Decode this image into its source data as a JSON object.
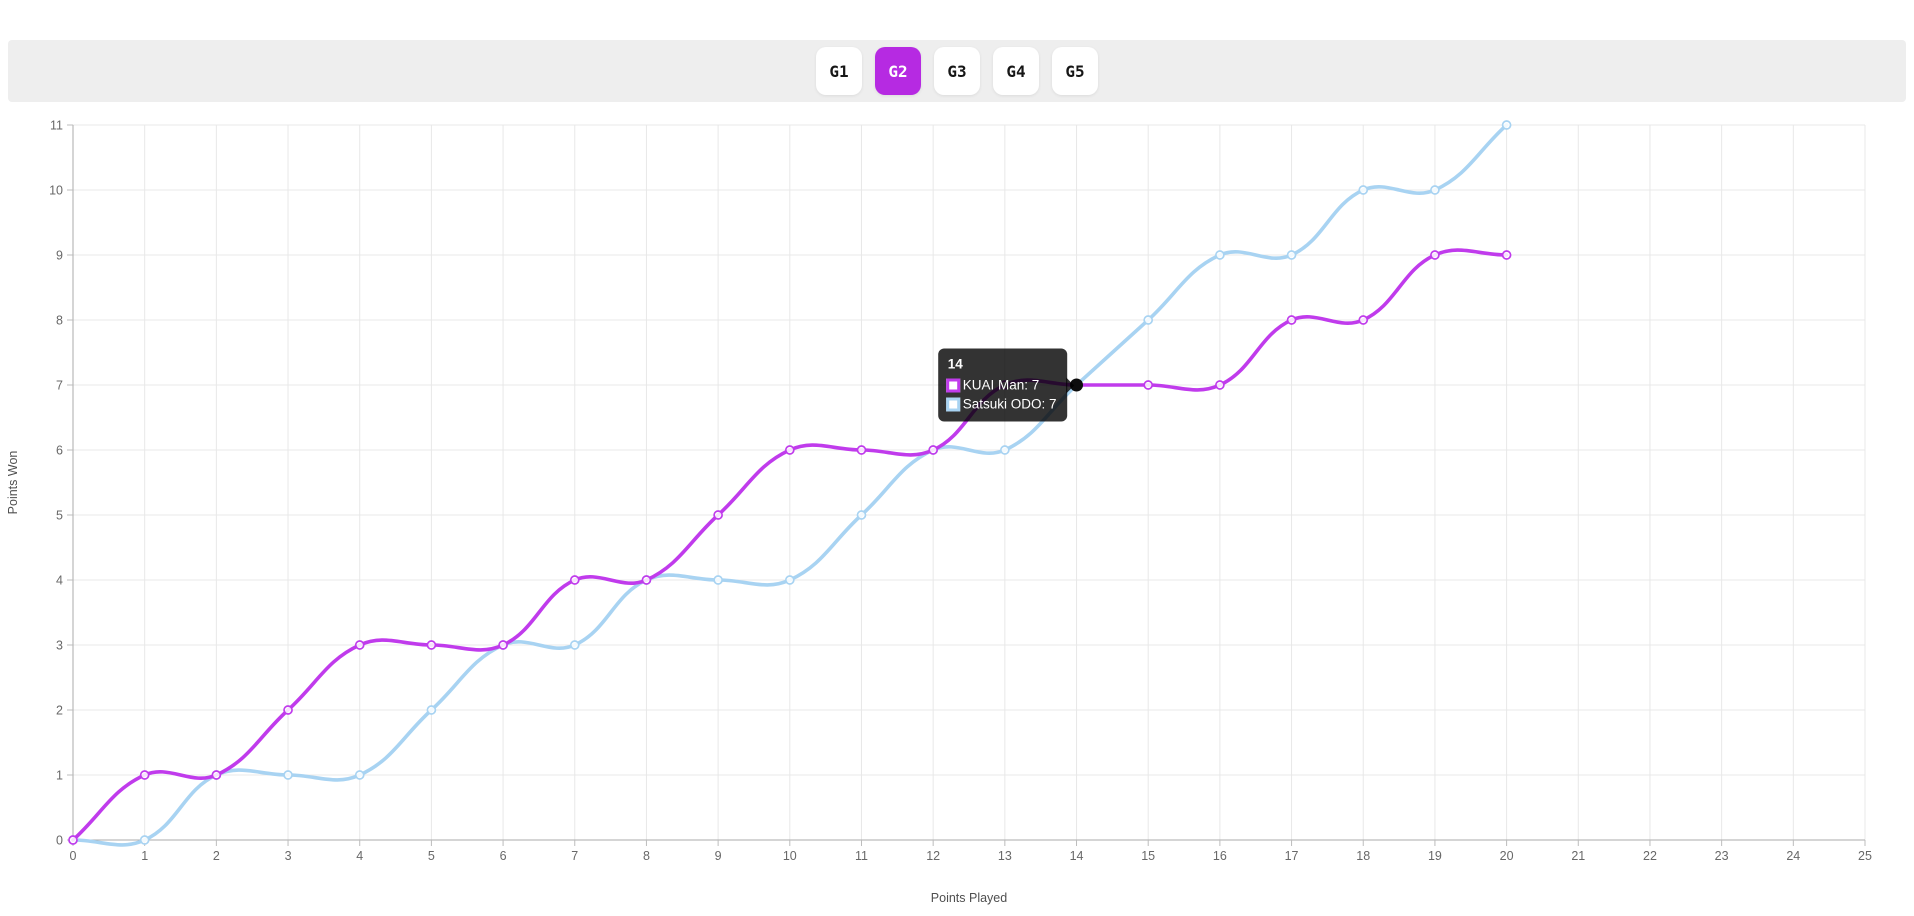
{
  "toolbar": {
    "buttons": [
      {
        "label": "G1",
        "active": false
      },
      {
        "label": "G2",
        "active": true
      },
      {
        "label": "G3",
        "active": false
      },
      {
        "label": "G4",
        "active": false
      },
      {
        "label": "G5",
        "active": false
      }
    ],
    "active_color": "#b62ae2"
  },
  "chart_data": {
    "type": "line",
    "title": "",
    "xlabel": "Points Played",
    "ylabel": "Points Won",
    "xlim": [
      0,
      25
    ],
    "ylim": [
      0,
      11
    ],
    "x_tick_step": 1,
    "y_tick_step": 1,
    "grid": true,
    "legend_position": "none",
    "curve_tension": 0.4,
    "x": [
      0,
      1,
      2,
      3,
      4,
      5,
      6,
      7,
      8,
      9,
      10,
      11,
      12,
      13,
      14,
      15,
      16,
      17,
      18,
      19,
      20
    ],
    "series": [
      {
        "name": "KUAI Man",
        "color": "#c03bec",
        "values": [
          0,
          1,
          1,
          2,
          3,
          3,
          3,
          4,
          4,
          5,
          6,
          6,
          6,
          7,
          7,
          7,
          7,
          8,
          8,
          9,
          9
        ]
      },
      {
        "name": "Satsuki ODO",
        "color": "#a8d3f2",
        "values": [
          0,
          0,
          1,
          1,
          1,
          2,
          3,
          3,
          4,
          4,
          4,
          5,
          6,
          6,
          7,
          8,
          9,
          9,
          10,
          10,
          11
        ]
      }
    ]
  },
  "tooltip": {
    "title": "14",
    "anchor_x": 14,
    "anchor_y": 7,
    "rows": [
      {
        "label": "KUAI Man: 7",
        "color": "#c03bec"
      },
      {
        "label": "Satsuki ODO: 7",
        "color": "#a8d3f2"
      }
    ]
  },
  "colors": {
    "toolbar_bg": "#eeeeee",
    "grid": "#e8e8e8",
    "axis_border": "#ababab",
    "tick_mark": "#bcbcbc",
    "tick_text": "#686868",
    "axis_title": "#4f4f4f",
    "tooltip_bg": "rgba(0,0,0,0.8)",
    "active_point": "#0d0d0d"
  }
}
